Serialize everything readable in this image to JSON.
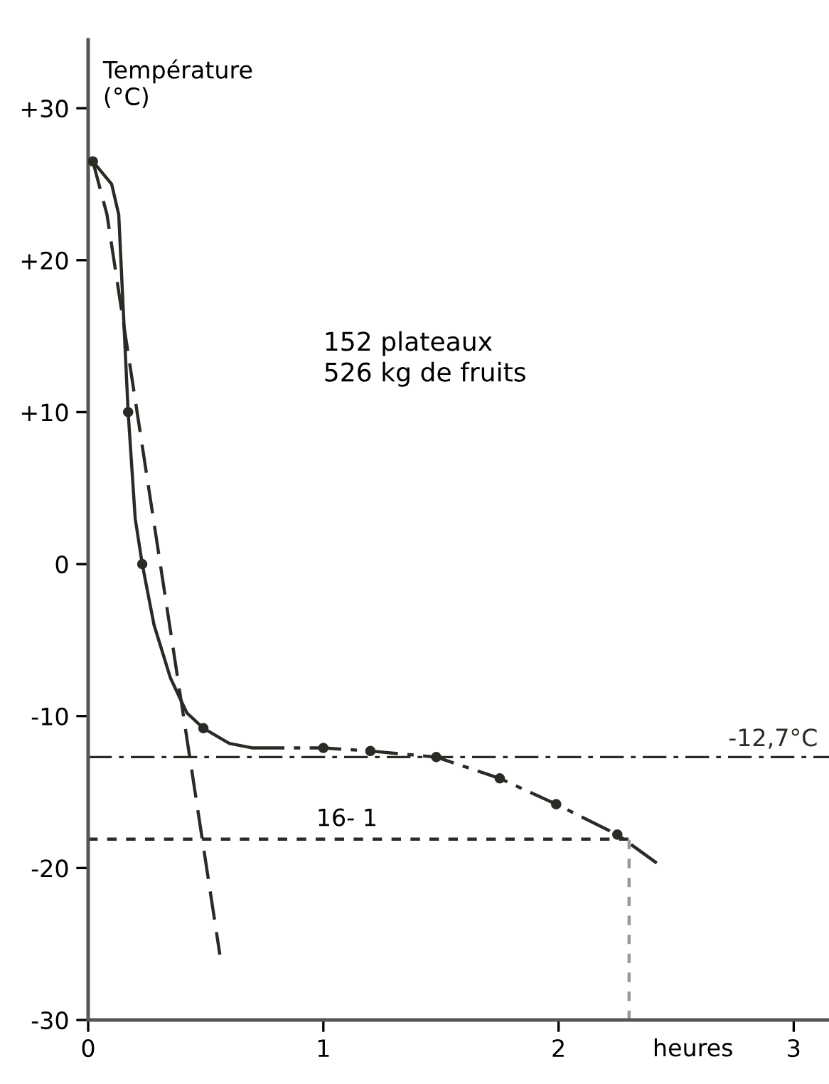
{
  "chart_data": {
    "type": "line",
    "ylabel": "Température\n(°C)",
    "xlabel": "heures",
    "xlim": [
      0,
      3.15
    ],
    "ylim": [
      -30,
      34.5
    ],
    "xticks": [
      0,
      1,
      2,
      3
    ],
    "yticks": [
      {
        "value": 30,
        "label": "+30"
      },
      {
        "value": 20,
        "label": "+20"
      },
      {
        "value": 10,
        "label": "+10"
      },
      0,
      -10,
      -20,
      -30
    ],
    "grid": false,
    "series": [
      {
        "color": "#2b2b26",
        "line_style": "solid",
        "x": [
          0.02,
          0.1,
          0.13,
          0.17,
          0.2,
          0.23,
          0.28,
          0.35,
          0.42,
          0.49,
          0.6,
          0.7
        ],
        "values": [
          26.5,
          25,
          23,
          10,
          3,
          0,
          -4,
          -7.5,
          -9.8,
          -10.8,
          -11.8,
          -12.1
        ]
      },
      {
        "color": "#2b2b26",
        "line_style": "dashdot",
        "x": [
          0.7,
          1.0,
          1.2,
          1.48,
          1.75,
          1.99,
          2.25,
          2.42
        ],
        "values": [
          -12.1,
          -12.1,
          -12.3,
          -12.7,
          -14.1,
          -15.8,
          -17.8,
          -19.7
        ]
      },
      {
        "type": "scatter",
        "color": "#2b2b26",
        "marker": "circle",
        "x": [
          0.02,
          0.17,
          0.23,
          0.49,
          1.0,
          1.2,
          1.48,
          1.75,
          1.99,
          2.25
        ],
        "values": [
          26.5,
          10,
          0,
          -10.8,
          -12.1,
          -12.3,
          -12.7,
          -14.1,
          -15.8,
          -17.8
        ]
      },
      {
        "color": "#2b2b26",
        "line_style": "dashed",
        "x": [
          0.02,
          0.08,
          0.56
        ],
        "values": [
          26.5,
          23,
          -25.7
        ]
      },
      {
        "color": "#2b2b26",
        "line_style": "dotted",
        "x": [
          0,
          2.3
        ],
        "values": [
          -18.1,
          -18.1
        ]
      },
      {
        "color": "#9a9a9a",
        "line_style": "dotted",
        "x": [
          2.3,
          2.3
        ],
        "values": [
          -30,
          -18.1
        ]
      }
    ],
    "ref_lines": [
      {
        "axis": "y",
        "value": -12.7,
        "label": "-12,7°C",
        "color": "#2b2b26",
        "line_style": "dashdot"
      }
    ],
    "annotations": [
      "152 plateaux\n526 kg de fruits",
      "16- 1"
    ]
  }
}
